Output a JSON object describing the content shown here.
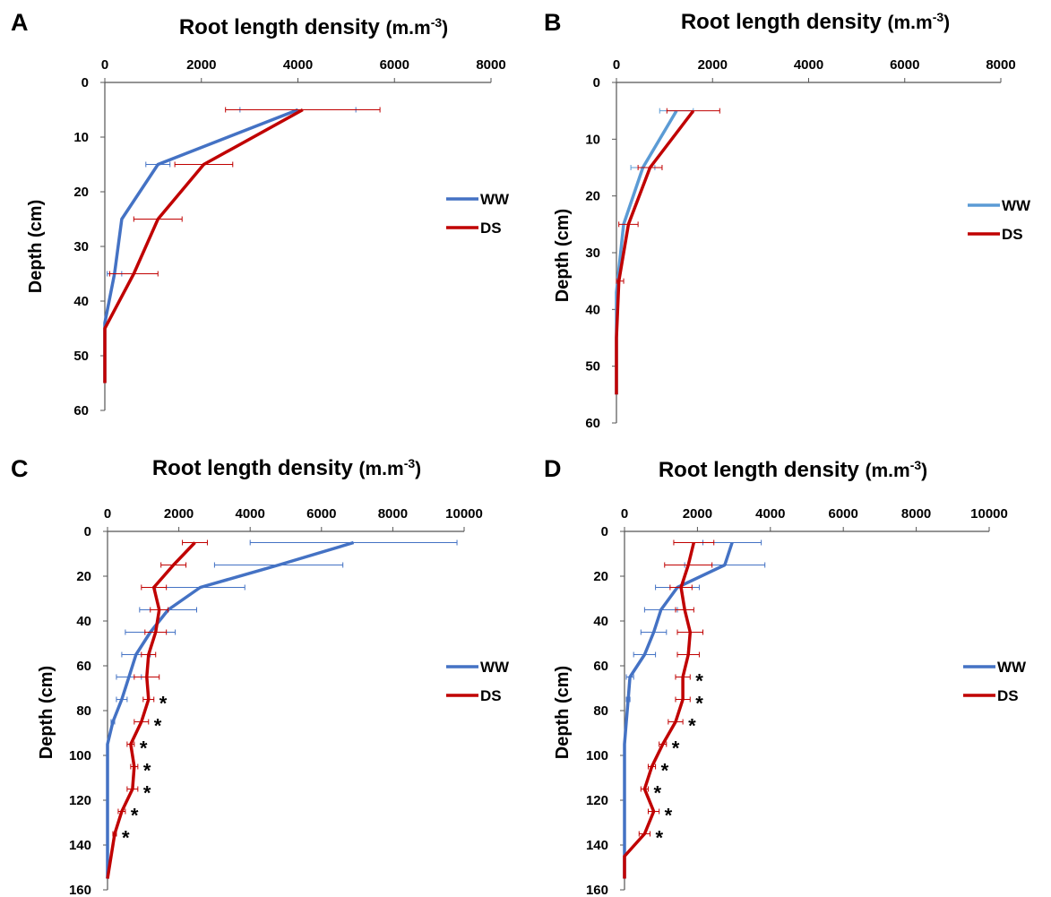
{
  "chart_data": [
    {
      "panel": "A",
      "type": "line",
      "title": "Root length density",
      "title_unit": "(m.m-3)",
      "xlabel": "Root length density (m.m-3)",
      "ylabel": "Depth (cm)",
      "xlim": [
        0,
        8000
      ],
      "ylim": [
        0,
        60
      ],
      "x_ticks": [
        "0",
        "2000",
        "4000",
        "6000",
        "8000"
      ],
      "y_ticks": [
        "0",
        "10",
        "20",
        "30",
        "40",
        "50",
        "60"
      ],
      "legend_position": "right",
      "series": [
        {
          "name": "WW",
          "color": "#4472c4",
          "points": [
            [
              4000,
              5
            ],
            [
              1100,
              15
            ],
            [
              350,
              25
            ],
            [
              200,
              35
            ],
            [
              0,
              44
            ],
            [
              0,
              55
            ]
          ],
          "errors": [
            1200,
            250,
            0,
            150,
            0,
            0
          ]
        },
        {
          "name": "DS",
          "color": "#c00000",
          "points": [
            [
              4100,
              5
            ],
            [
              2050,
              15
            ],
            [
              1100,
              25
            ],
            [
              600,
              35
            ],
            [
              0,
              45
            ],
            [
              0,
              55
            ]
          ],
          "errors": [
            1600,
            600,
            500,
            500,
            0,
            0
          ]
        }
      ],
      "significant": []
    },
    {
      "panel": "B",
      "type": "line",
      "title": "Root length density",
      "title_unit": "(m.m-3)",
      "xlabel": "Root length density (m.m-3)",
      "ylabel": "Depth (cm)",
      "xlim": [
        0,
        8000
      ],
      "ylim": [
        0,
        60
      ],
      "x_ticks": [
        "0",
        "2000",
        "4000",
        "6000",
        "8000"
      ],
      "y_ticks": [
        "0",
        "10",
        "20",
        "30",
        "40",
        "50",
        "60"
      ],
      "legend_position": "right",
      "series": [
        {
          "name": "WW",
          "color": "#5b9bd5",
          "points": [
            [
              1250,
              5
            ],
            [
              550,
              15
            ],
            [
              150,
              25
            ],
            [
              0,
              37
            ],
            [
              0,
              55
            ]
          ],
          "errors": [
            350,
            250,
            0,
            0,
            0
          ]
        },
        {
          "name": "DS",
          "color": "#c00000",
          "points": [
            [
              1600,
              5
            ],
            [
              700,
              15
            ],
            [
              250,
              25
            ],
            [
              50,
              35
            ],
            [
              0,
              45
            ],
            [
              0,
              55
            ]
          ],
          "errors": [
            550,
            250,
            200,
            100,
            0,
            0
          ]
        }
      ],
      "significant": []
    },
    {
      "panel": "C",
      "type": "line",
      "title": "Root length density",
      "title_unit": "(m.m-3)",
      "xlabel": "Root length density (m.m-3)",
      "ylabel": "Depth (cm)",
      "xlim": [
        0,
        10000
      ],
      "ylim": [
        0,
        160
      ],
      "x_ticks": [
        "0",
        "2000",
        "4000",
        "6000",
        "8000",
        "10000"
      ],
      "y_ticks": [
        "0",
        "20",
        "40",
        "60",
        "80",
        "100",
        "120",
        "140",
        "160"
      ],
      "legend_position": "right",
      "series": [
        {
          "name": "WW",
          "color": "#4472c4",
          "points": [
            [
              6900,
              5
            ],
            [
              4800,
              15
            ],
            [
              2600,
              25
            ],
            [
              1700,
              35
            ],
            [
              1200,
              45
            ],
            [
              800,
              55
            ],
            [
              600,
              65
            ],
            [
              400,
              75
            ],
            [
              150,
              85
            ],
            [
              0,
              95
            ],
            [
              0,
              105
            ],
            [
              0,
              115
            ],
            [
              0,
              125
            ],
            [
              0,
              135
            ],
            [
              0,
              145
            ],
            [
              0,
              155
            ]
          ],
          "errors": [
            2900,
            1800,
            1250,
            800,
            700,
            400,
            350,
            150,
            50,
            0,
            0,
            0,
            0,
            0,
            0,
            0
          ]
        },
        {
          "name": "DS",
          "color": "#c00000",
          "points": [
            [
              2450,
              5
            ],
            [
              1850,
              15
            ],
            [
              1300,
              25
            ],
            [
              1450,
              35
            ],
            [
              1350,
              45
            ],
            [
              1150,
              55
            ],
            [
              1100,
              65
            ],
            [
              1150,
              75
            ],
            [
              950,
              85
            ],
            [
              650,
              95
            ],
            [
              750,
              105
            ],
            [
              700,
              115
            ],
            [
              400,
              125
            ],
            [
              200,
              135
            ],
            [
              100,
              145
            ],
            [
              0,
              155
            ]
          ],
          "errors": [
            350,
            350,
            350,
            250,
            300,
            200,
            350,
            150,
            200,
            100,
            100,
            150,
            100,
            50,
            0,
            0
          ]
        }
      ],
      "significant": [
        75,
        85,
        95,
        105,
        115,
        125,
        135
      ]
    },
    {
      "panel": "D",
      "type": "line",
      "title": "Root length density",
      "title_unit": "(m.m-3)",
      "xlabel": "Root length density (m.m-3)",
      "ylabel": "Depth (cm)",
      "xlim": [
        0,
        10000
      ],
      "ylim": [
        0,
        160
      ],
      "x_ticks": [
        "0",
        "2000",
        "4000",
        "6000",
        "8000",
        "10000"
      ],
      "y_ticks": [
        "0",
        "20",
        "40",
        "60",
        "80",
        "100",
        "120",
        "140",
        "160"
      ],
      "legend_position": "right",
      "series": [
        {
          "name": "WW",
          "color": "#4472c4",
          "points": [
            [
              2950,
              5
            ],
            [
              2750,
              15
            ],
            [
              1450,
              25
            ],
            [
              1000,
              35
            ],
            [
              800,
              45
            ],
            [
              550,
              55
            ],
            [
              150,
              65
            ],
            [
              100,
              75
            ],
            [
              50,
              85
            ],
            [
              0,
              95
            ],
            [
              0,
              105
            ],
            [
              0,
              115
            ],
            [
              0,
              125
            ],
            [
              0,
              135
            ],
            [
              0,
              145
            ],
            [
              0,
              155
            ]
          ],
          "errors": [
            800,
            1100,
            600,
            450,
            350,
            300,
            100,
            50,
            0,
            0,
            0,
            0,
            0,
            0,
            0,
            0
          ]
        },
        {
          "name": "DS",
          "color": "#c00000",
          "points": [
            [
              1900,
              5
            ],
            [
              1750,
              15
            ],
            [
              1550,
              25
            ],
            [
              1650,
              35
            ],
            [
              1800,
              45
            ],
            [
              1750,
              55
            ],
            [
              1600,
              65
            ],
            [
              1600,
              75
            ],
            [
              1400,
              85
            ],
            [
              1050,
              95
            ],
            [
              750,
              105
            ],
            [
              550,
              115
            ],
            [
              800,
              125
            ],
            [
              550,
              135
            ],
            [
              0,
              145
            ],
            [
              0,
              155
            ]
          ],
          "errors": [
            550,
            650,
            300,
            250,
            350,
            300,
            200,
            200,
            200,
            100,
            100,
            100,
            150,
            150,
            0,
            0
          ]
        }
      ],
      "significant": [
        65,
        75,
        85,
        95,
        105,
        115,
        125,
        135
      ]
    }
  ]
}
